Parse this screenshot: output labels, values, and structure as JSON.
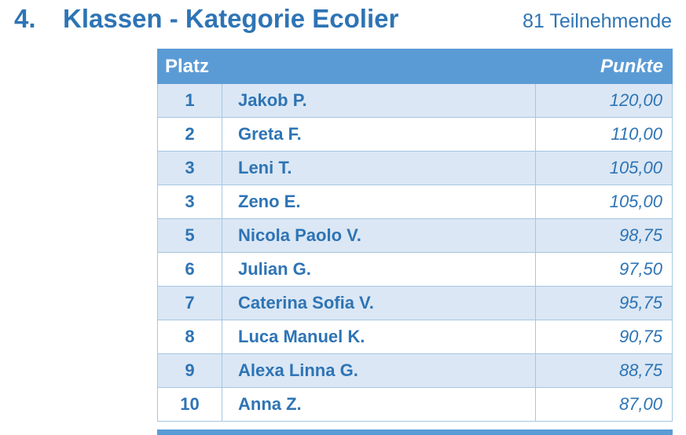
{
  "header": {
    "number": "4.",
    "title": "Klassen - Kategorie Ecolier",
    "participants": "81 Teilnehmende"
  },
  "table": {
    "columns": {
      "rank": "Platz",
      "points": "Punkte"
    },
    "rows": [
      {
        "rank": "1",
        "name": "Jakob P.",
        "points": "120,00"
      },
      {
        "rank": "2",
        "name": "Greta F.",
        "points": "110,00"
      },
      {
        "rank": "3",
        "name": "Leni T.",
        "points": "105,00"
      },
      {
        "rank": "3",
        "name": "Zeno E.",
        "points": "105,00"
      },
      {
        "rank": "5",
        "name": "Nicola Paolo V.",
        "points": "98,75"
      },
      {
        "rank": "6",
        "name": "Julian G.",
        "points": "97,50"
      },
      {
        "rank": "7",
        "name": "Caterina Sofia V.",
        "points": "95,75"
      },
      {
        "rank": "8",
        "name": "Luca Manuel K.",
        "points": "90,75"
      },
      {
        "rank": "9",
        "name": "Alexa Linna G.",
        "points": "88,75"
      },
      {
        "rank": "10",
        "name": "Anna Z.",
        "points": "87,00"
      }
    ]
  },
  "colors": {
    "header_bg": "#5B9BD5",
    "row_alt_bg": "#DBE7F4",
    "text_blue": "#2E74B5",
    "border": "#A6C6E4"
  }
}
